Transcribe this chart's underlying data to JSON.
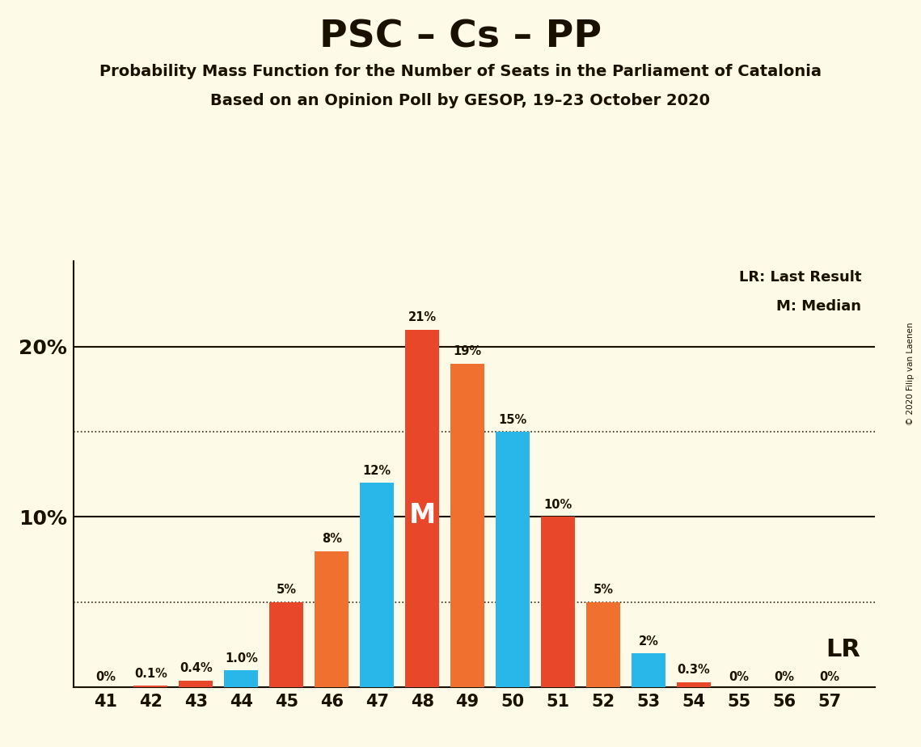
{
  "title": "PSC – Cs – PP",
  "subtitle1": "Probability Mass Function for the Number of Seats in the Parliament of Catalonia",
  "subtitle2": "Based on an Opinion Poll by GESOP, 19–23 October 2020",
  "copyright": "© 2020 Filip van Laenen",
  "seats": [
    41,
    42,
    43,
    44,
    45,
    46,
    47,
    48,
    49,
    50,
    51,
    52,
    53,
    54,
    55,
    56,
    57
  ],
  "red_values": [
    0.0,
    0.1,
    0.4,
    0.0,
    5.0,
    8.0,
    0.0,
    21.0,
    19.0,
    0.0,
    10.0,
    5.0,
    0.0,
    0.3,
    0.0,
    0.0,
    0.0
  ],
  "blue_values": [
    0.0,
    0.0,
    0.0,
    1.0,
    0.0,
    0.0,
    12.0,
    0.0,
    0.0,
    15.0,
    0.0,
    0.0,
    2.0,
    0.0,
    0.0,
    0.0,
    0.0
  ],
  "bar_colors": [
    "#E8472A",
    "#E8472A",
    "#E8472A",
    "#29B6E8",
    "#E8472A",
    "#F07030",
    "#29B6E8",
    "#E8472A",
    "#F07030",
    "#29B6E8",
    "#E8472A",
    "#F07030",
    "#29B6E8",
    "#E8472A",
    "#E8472A",
    "#E8472A",
    "#E8472A"
  ],
  "red_color": "#E8472A",
  "blue_color": "#29B6E8",
  "orange_color": "#F07030",
  "background_color": "#FDFAE8",
  "label_color": "#1A1000",
  "median_seat": 48,
  "lr_seat": 52,
  "lr_label": "LR",
  "median_label": "M",
  "ylim": [
    0,
    25
  ],
  "legend_lr": "LR: Last Result",
  "legend_m": "M: Median",
  "dotted_lines": [
    5.0,
    15.0
  ],
  "solid_lines": [
    10.0,
    20.0
  ],
  "bar_width": 0.75
}
